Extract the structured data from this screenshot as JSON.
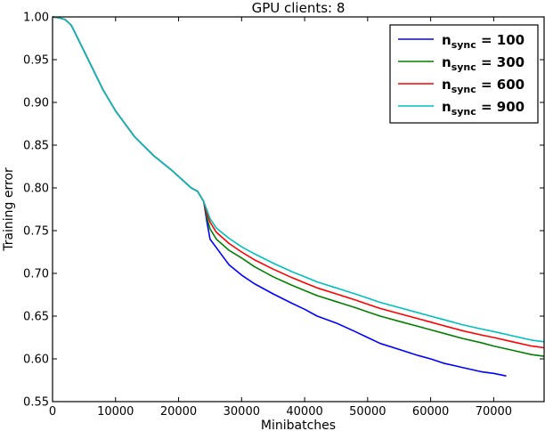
{
  "chart_data": {
    "type": "line",
    "title": "GPU clients: 8",
    "xlabel": "Minibatches",
    "ylabel": "Training error",
    "xlim": [
      0,
      78000
    ],
    "ylim": [
      0.55,
      1.0
    ],
    "xticks": [
      0,
      10000,
      20000,
      30000,
      40000,
      50000,
      60000,
      70000
    ],
    "xtick_labels": [
      "0",
      "10000",
      "20000",
      "30000",
      "40000",
      "50000",
      "60000",
      "70000"
    ],
    "yticks": [
      0.55,
      0.6,
      0.65,
      0.7,
      0.75,
      0.8,
      0.85,
      0.9,
      0.95,
      1.0
    ],
    "ytick_labels": [
      "0.55",
      "0.60",
      "0.65",
      "0.70",
      "0.75",
      "0.80",
      "0.85",
      "0.90",
      "0.95",
      "1.00"
    ],
    "grid": false,
    "legend_position": "top-right",
    "series": [
      {
        "name_main": "n",
        "name_sub": "sync",
        "name_suffix": " = 100",
        "color": "#0000ff",
        "x": [
          0,
          1000,
          2000,
          3000,
          5000,
          8000,
          10000,
          13000,
          16000,
          19000,
          22000,
          23000,
          24000,
          24500,
          25000,
          26000,
          27000,
          28000,
          30000,
          32000,
          35000,
          38000,
          40000,
          42000,
          45000,
          48000,
          50000,
          52000,
          55000,
          58000,
          60000,
          62000,
          65000,
          68000,
          70000,
          72000
        ],
        "y": [
          1.0,
          0.999,
          0.997,
          0.99,
          0.96,
          0.915,
          0.89,
          0.86,
          0.838,
          0.82,
          0.8,
          0.796,
          0.784,
          0.76,
          0.74,
          0.73,
          0.72,
          0.71,
          0.698,
          0.688,
          0.676,
          0.665,
          0.658,
          0.65,
          0.642,
          0.632,
          0.625,
          0.618,
          0.611,
          0.604,
          0.6,
          0.595,
          0.59,
          0.585,
          0.583,
          0.58
        ]
      },
      {
        "name_main": "n",
        "name_sub": "sync",
        "name_suffix": " = 300",
        "color": "#008000",
        "x": [
          0,
          1000,
          2000,
          3000,
          5000,
          8000,
          10000,
          13000,
          16000,
          19000,
          22000,
          23000,
          24000,
          24500,
          25000,
          26000,
          28000,
          30000,
          32000,
          35000,
          38000,
          40000,
          42000,
          45000,
          48000,
          50000,
          52000,
          55000,
          58000,
          60000,
          62000,
          65000,
          68000,
          70000,
          73000,
          76000,
          78000
        ],
        "y": [
          1.0,
          0.999,
          0.997,
          0.99,
          0.96,
          0.915,
          0.89,
          0.86,
          0.838,
          0.82,
          0.8,
          0.796,
          0.784,
          0.765,
          0.752,
          0.74,
          0.727,
          0.718,
          0.708,
          0.696,
          0.686,
          0.68,
          0.674,
          0.667,
          0.66,
          0.655,
          0.65,
          0.644,
          0.638,
          0.634,
          0.63,
          0.624,
          0.619,
          0.615,
          0.61,
          0.605,
          0.603
        ]
      },
      {
        "name_main": "n",
        "name_sub": "sync",
        "name_suffix": " = 600",
        "color": "#ff0000",
        "x": [
          0,
          1000,
          2000,
          3000,
          5000,
          8000,
          10000,
          13000,
          16000,
          19000,
          22000,
          23000,
          24000,
          24500,
          25000,
          26000,
          28000,
          30000,
          32000,
          35000,
          38000,
          40000,
          42000,
          45000,
          48000,
          50000,
          52000,
          55000,
          58000,
          60000,
          62000,
          65000,
          68000,
          70000,
          73000,
          76000,
          78000
        ],
        "y": [
          1.0,
          0.999,
          0.997,
          0.99,
          0.96,
          0.915,
          0.89,
          0.86,
          0.838,
          0.82,
          0.8,
          0.796,
          0.784,
          0.77,
          0.76,
          0.748,
          0.735,
          0.725,
          0.716,
          0.705,
          0.695,
          0.689,
          0.683,
          0.676,
          0.669,
          0.664,
          0.659,
          0.653,
          0.647,
          0.643,
          0.639,
          0.633,
          0.628,
          0.625,
          0.62,
          0.615,
          0.613
        ]
      },
      {
        "name_main": "n",
        "name_sub": "sync",
        "name_suffix": " = 900",
        "color": "#00bfbf",
        "x": [
          0,
          1000,
          2000,
          3000,
          5000,
          8000,
          10000,
          13000,
          16000,
          19000,
          22000,
          23000,
          24000,
          24500,
          25000,
          26000,
          28000,
          30000,
          32000,
          35000,
          38000,
          40000,
          42000,
          45000,
          48000,
          50000,
          52000,
          55000,
          58000,
          60000,
          62000,
          65000,
          68000,
          70000,
          73000,
          76000,
          78000
        ],
        "y": [
          1.0,
          0.999,
          0.997,
          0.99,
          0.96,
          0.915,
          0.89,
          0.86,
          0.838,
          0.82,
          0.8,
          0.796,
          0.784,
          0.774,
          0.764,
          0.753,
          0.741,
          0.731,
          0.723,
          0.712,
          0.702,
          0.696,
          0.69,
          0.683,
          0.676,
          0.671,
          0.666,
          0.66,
          0.654,
          0.65,
          0.646,
          0.64,
          0.635,
          0.632,
          0.627,
          0.622,
          0.62
        ]
      }
    ]
  }
}
